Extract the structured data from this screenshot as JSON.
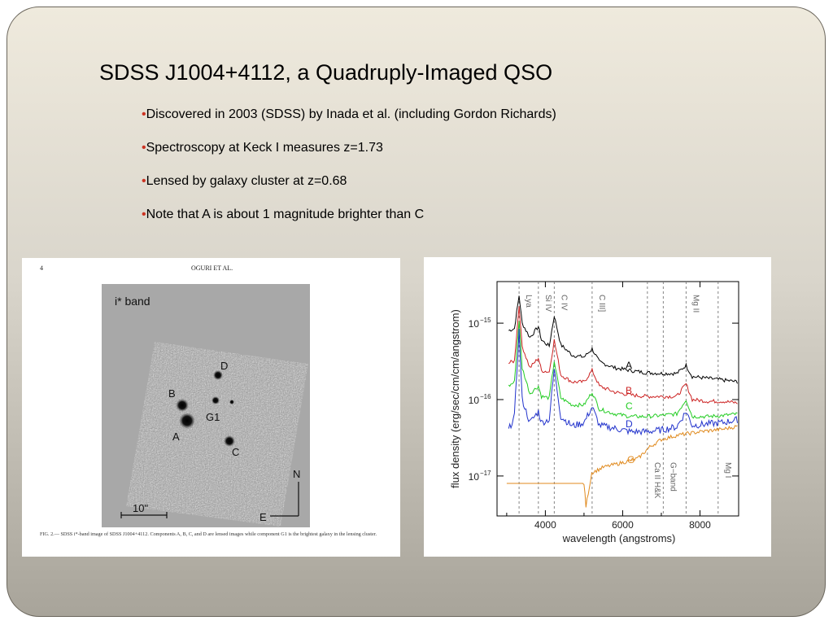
{
  "slide": {
    "title": "SDSS J1004+4112, a Quadruply-Imaged QSO",
    "bullet_marker": "•",
    "bullets": [
      "Discovered in 2003 (SDSS) by Inada et al. (including Gordon Richards)",
      "Spectroscopy at Keck I measures z=1.73",
      "Lensed by galaxy cluster at z=0.68",
      "Note that  A is about 1 magnitude brighter than C"
    ]
  },
  "figure_image": {
    "page_number": "4",
    "running_head": "OGURI ET AL.",
    "band_label": "i* band",
    "component_labels": [
      "A",
      "B",
      "C",
      "D",
      "G1"
    ],
    "compass_north": "N",
    "compass_east": "E",
    "scale_label": "10\"",
    "caption": "FIG. 2.— SDSS i*-band image of SDSS J1004+4112. Components A, B, C, and D are lensed images while component G1 is the brightest galaxy in the lensing cluster."
  },
  "chart_data": {
    "type": "line",
    "xlabel": "wavelength (angstroms)",
    "ylabel": "flux density (erg/sec/cm/cm/angstrom)",
    "x_ticks": [
      4000,
      6000,
      8000
    ],
    "x_tick_labels": [
      "4000",
      "6000",
      "8000"
    ],
    "y_ticks": [
      1e-15,
      1e-16,
      1e-17
    ],
    "y_tick_labels": [
      {
        "base": "10",
        "exp": "−15"
      },
      {
        "base": "10",
        "exp": "−16"
      },
      {
        "base": "10",
        "exp": "−17"
      }
    ],
    "xlim": [
      2750,
      9000
    ],
    "ylim": [
      3e-18,
      3.5e-15
    ],
    "log_y": true,
    "lines": [
      {
        "label": "Lya",
        "x": 3320
      },
      {
        "label": "Si IV",
        "x": 3820
      },
      {
        "label": "C IV",
        "x": 4230
      },
      {
        "label": "C III]",
        "x": 5210
      },
      {
        "label": "Ca II H&K",
        "x": 6640
      },
      {
        "label": "G−band",
        "x": 7050
      },
      {
        "label": "Mg II",
        "x": 7640
      },
      {
        "label": "Mg I",
        "x": 8470
      }
    ],
    "series": [
      {
        "name": "A",
        "color": "#000000",
        "x": [
          3050,
          3200,
          3320,
          3400,
          3600,
          3820,
          3900,
          4100,
          4230,
          4400,
          4700,
          5000,
          5210,
          5400,
          5800,
          6200,
          6600,
          7000,
          7400,
          7640,
          7800,
          8200,
          8600,
          9000
        ],
        "y": [
          8e-16,
          8.5e-16,
          2.3e-15,
          1e-15,
          6.5e-16,
          9e-16,
          6e-16,
          5e-16,
          1.25e-15,
          5.2e-16,
          3.8e-16,
          3.6e-16,
          4.6e-16,
          3.1e-16,
          2.6e-16,
          2.4e-16,
          2.25e-16,
          2.2e-16,
          2.2e-16,
          2.8e-16,
          2e-16,
          1.9e-16,
          1.8e-16,
          1.7e-16
        ]
      },
      {
        "name": "B",
        "color": "#cc2222",
        "x": [
          3050,
          3200,
          3320,
          3400,
          3600,
          3820,
          3900,
          4100,
          4230,
          4400,
          4700,
          5000,
          5210,
          5400,
          5800,
          6200,
          6600,
          7000,
          7400,
          7640,
          7800,
          8200,
          8600,
          9000
        ],
        "y": [
          3e-16,
          3.2e-16,
          1.7e-15,
          5e-16,
          2.6e-16,
          3.5e-16,
          2.4e-16,
          2.3e-16,
          6e-16,
          2.1e-16,
          1.7e-16,
          1.7e-16,
          2.4e-16,
          1.5e-16,
          1.25e-16,
          1.15e-16,
          1.1e-16,
          1.1e-16,
          1.1e-16,
          1.6e-16,
          1e-16,
          9.5e-17,
          9.5e-17,
          9e-17
        ]
      },
      {
        "name": "C",
        "color": "#22cc22",
        "x": [
          3050,
          3200,
          3320,
          3400,
          3600,
          3820,
          3900,
          4100,
          4230,
          4400,
          4700,
          5000,
          5210,
          5400,
          5800,
          6200,
          6600,
          7000,
          7400,
          7640,
          7800,
          8200,
          8600,
          9000
        ],
        "y": [
          1.5e-16,
          1.7e-16,
          1.1e-15,
          2.6e-16,
          1.2e-16,
          1.5e-16,
          1.1e-16,
          1.05e-16,
          3.2e-16,
          1.05e-16,
          8.5e-17,
          8.5e-17,
          1.25e-16,
          7.5e-17,
          6.5e-17,
          6e-17,
          6e-17,
          6.2e-17,
          6.5e-17,
          1e-16,
          6e-17,
          6e-17,
          6.2e-17,
          6.5e-17
        ]
      },
      {
        "name": "D",
        "color": "#2233cc",
        "x": [
          3050,
          3200,
          3320,
          3400,
          3600,
          3820,
          3900,
          4100,
          4230,
          4400,
          4700,
          5000,
          5210,
          5400,
          5800,
          6200,
          6600,
          7000,
          7400,
          7640,
          7800,
          8200,
          8600,
          9000
        ],
        "y": [
          4e-17,
          6e-17,
          8e-16,
          1e-16,
          5e-17,
          7e-17,
          5e-17,
          5.5e-17,
          2.5e-16,
          6e-17,
          4.5e-17,
          5e-17,
          8e-17,
          4.6e-17,
          4.2e-17,
          3.8e-17,
          3.8e-17,
          4e-17,
          4.4e-17,
          7e-17,
          4.6e-17,
          4.8e-17,
          5e-17,
          5.5e-17
        ]
      },
      {
        "name": "G",
        "color": "#e08a1e",
        "x": [
          3000,
          4000,
          4500,
          5000,
          5050,
          5200,
          5500,
          6000,
          6400,
          6700,
          7000,
          7400,
          8000,
          8600,
          9000
        ],
        "y": [
          8e-18,
          8e-18,
          8e-18,
          8e-18,
          4e-18,
          1.1e-17,
          1.3e-17,
          1.5e-17,
          1.7e-17,
          2.4e-17,
          3e-17,
          3.4e-17,
          3.8e-17,
          4.1e-17,
          4.5e-17
        ]
      }
    ]
  }
}
